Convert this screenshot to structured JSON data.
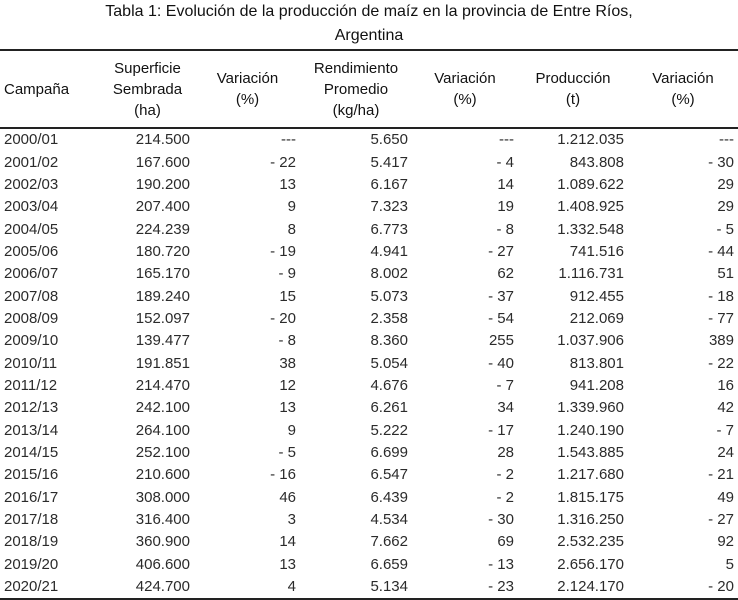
{
  "title": {
    "line1": "Tabla 1: Evolución de la producción de maíz en la provincia de Entre Ríos,",
    "line2": "Argentina"
  },
  "table": {
    "headers": [
      [
        "Campaña"
      ],
      [
        "Superficie",
        "Sembrada",
        "(ha)"
      ],
      [
        "Variación",
        "(%)"
      ],
      [
        "Rendimiento",
        "Promedio",
        "(kg/ha)"
      ],
      [
        "Variación",
        "(%)"
      ],
      [
        "Producción",
        "(t)"
      ],
      [
        "Variación",
        "(%)"
      ]
    ],
    "rows": [
      [
        "2000/01",
        "214.500",
        "---",
        "5.650",
        "---",
        "1.212.035",
        "---"
      ],
      [
        "2001/02",
        "167.600",
        "- 22",
        "5.417",
        "- 4",
        "843.808",
        "- 30"
      ],
      [
        "2002/03",
        "190.200",
        "13",
        "6.167",
        "14",
        "1.089.622",
        "29"
      ],
      [
        "2003/04",
        "207.400",
        "9",
        "7.323",
        "19",
        "1.408.925",
        "29"
      ],
      [
        "2004/05",
        "224.239",
        "8",
        "6.773",
        "- 8",
        "1.332.548",
        "- 5"
      ],
      [
        "2005/06",
        "180.720",
        "- 19",
        "4.941",
        "- 27",
        "741.516",
        "- 44"
      ],
      [
        "2006/07",
        "165.170",
        "- 9",
        "8.002",
        "62",
        "1.116.731",
        "51"
      ],
      [
        "2007/08",
        "189.240",
        "15",
        "5.073",
        "- 37",
        "912.455",
        "- 18"
      ],
      [
        "2008/09",
        "152.097",
        "- 20",
        "2.358",
        "- 54",
        "212.069",
        "- 77"
      ],
      [
        "2009/10",
        "139.477",
        "- 8",
        "8.360",
        "255",
        "1.037.906",
        "389"
      ],
      [
        "2010/11",
        "191.851",
        "38",
        "5.054",
        "- 40",
        "813.801",
        "- 22"
      ],
      [
        "2011/12",
        "214.470",
        "12",
        "4.676",
        "- 7",
        "941.208",
        "16"
      ],
      [
        "2012/13",
        "242.100",
        "13",
        "6.261",
        "34",
        "1.339.960",
        "42"
      ],
      [
        "2013/14",
        "264.100",
        "9",
        "5.222",
        "- 17",
        "1.240.190",
        "- 7"
      ],
      [
        "2014/15",
        "252.100",
        "- 5",
        "6.699",
        "28",
        "1.543.885",
        "24"
      ],
      [
        "2015/16",
        "210.600",
        "- 16",
        "6.547",
        "- 2",
        "1.217.680",
        "- 21"
      ],
      [
        "2016/17",
        "308.000",
        "46",
        "6.439",
        "- 2",
        "1.815.175",
        "49"
      ],
      [
        "2017/18",
        "316.400",
        "3",
        "4.534",
        "- 30",
        "1.316.250",
        "- 27"
      ],
      [
        "2018/19",
        "360.900",
        "14",
        "7.662",
        "69",
        "2.532.235",
        "92"
      ],
      [
        "2019/20",
        "406.600",
        "13",
        "6.659",
        "- 13",
        "2.656.170",
        "5"
      ],
      [
        "2020/21",
        "424.700",
        "4",
        "5.134",
        "- 23",
        "2.124.170",
        "- 20"
      ]
    ]
  }
}
